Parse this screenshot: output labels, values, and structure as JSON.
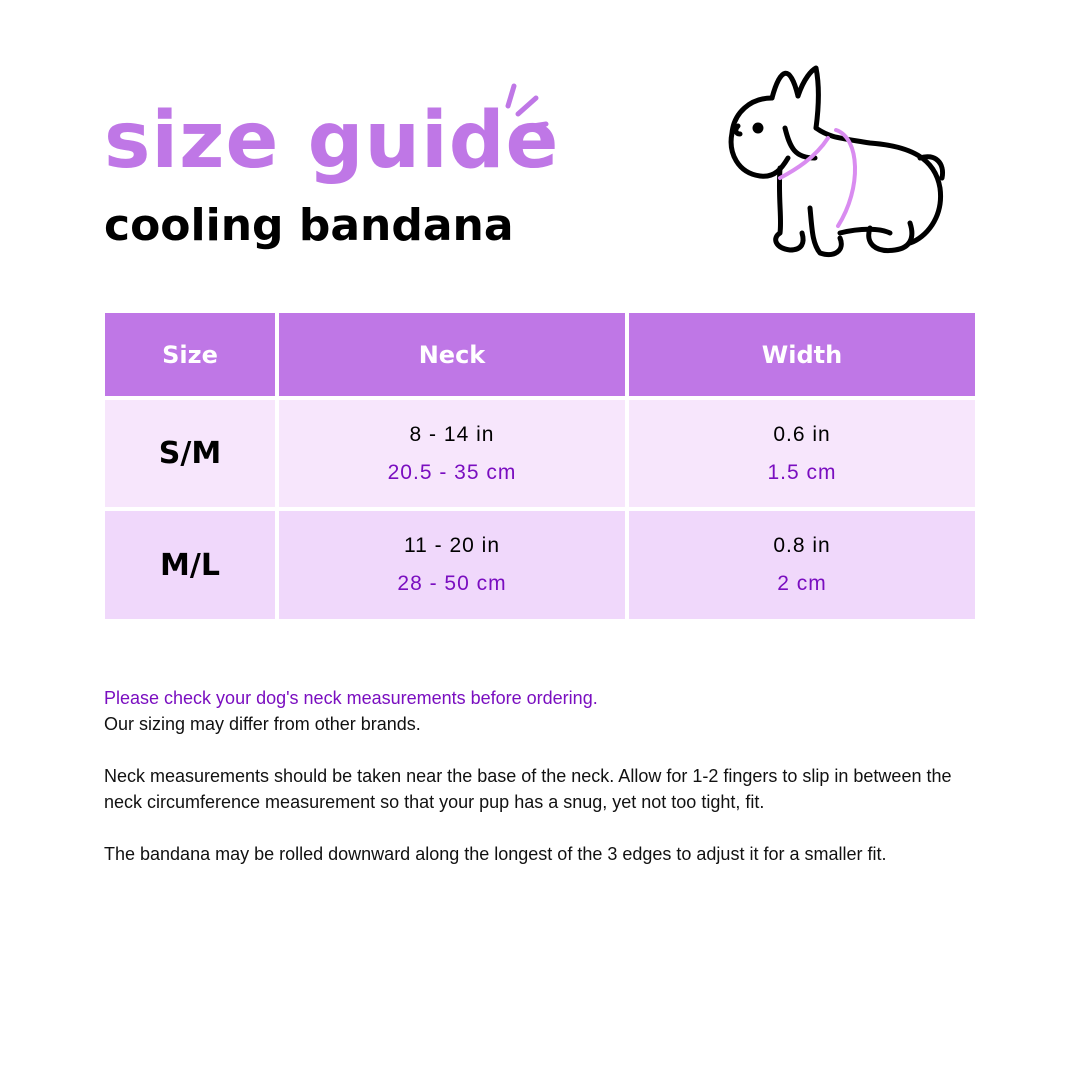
{
  "header": {
    "title": "size guide",
    "subtitle": "cooling bandana"
  },
  "illustration": {
    "icon": "french-bulldog-with-measure-lines-icon",
    "accent": "#d98cf0"
  },
  "colors": {
    "header_bg": "#bf77e6",
    "row_light": "#f7e6fc",
    "row_dark": "#f0d8fb",
    "metric_text": "#7a0ec0"
  },
  "table": {
    "columns": [
      "Size",
      "Neck",
      "Width"
    ],
    "rows": [
      {
        "size": "S/M",
        "neck_in": "8 - 14 in",
        "neck_cm": "20.5 - 35 cm",
        "width_in": "0.6 in",
        "width_cm": "1.5 cm"
      },
      {
        "size": "M/L",
        "neck_in": "11 - 20 in",
        "neck_cm": "28 - 50 cm",
        "width_in": "0.8 in",
        "width_cm": "2 cm"
      }
    ]
  },
  "notes": {
    "highlight": "Please check your dog's neck measurements before ordering.",
    "line2": "Our sizing may differ from other brands.",
    "para2": "Neck measurements should be taken near the base of the neck. Allow for 1-2 fingers to slip in between the neck circumference measurement so that your pup has a snug, yet not too tight, fit.",
    "para3": "The bandana may be rolled downward along the longest of the 3 edges to adjust it for a smaller fit."
  }
}
